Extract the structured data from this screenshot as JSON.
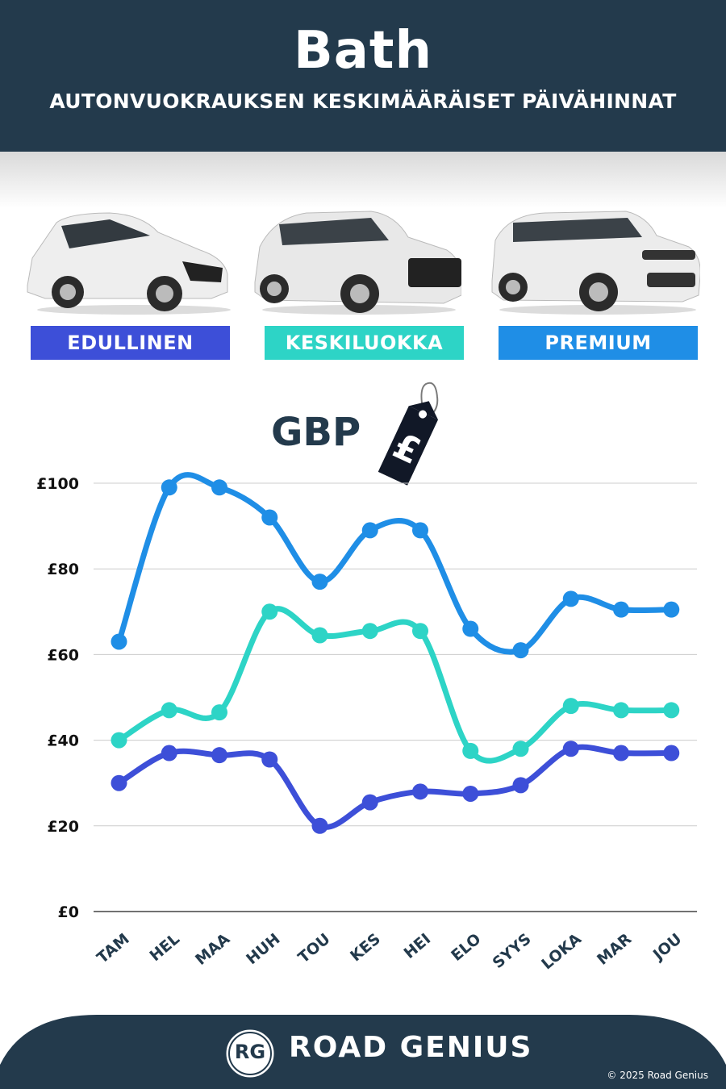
{
  "header": {
    "city": "Bath",
    "subtitle": "AUTONVUOKRAUKSEN KESKIMÄÄRÄISET PÄIVÄHINNAT"
  },
  "categories": [
    {
      "label": "EDULLINEN",
      "color": "#3d4fd8"
    },
    {
      "label": "KESKILUOKKA",
      "color": "#2dd4c6"
    },
    {
      "label": "PREMIUM",
      "color": "#1f8ee6"
    }
  ],
  "currency_label": "GBP",
  "price_tag_icon": "pound-price-tag-icon",
  "chart_data": {
    "type": "line",
    "x": [
      "TAM",
      "HEL",
      "MAA",
      "HUH",
      "TOU",
      "KES",
      "HEI",
      "ELO",
      "SYYS",
      "LOKA",
      "MAR",
      "JOU"
    ],
    "yticks": [
      "£0",
      "£20",
      "£40",
      "£60",
      "£80",
      "£100"
    ],
    "ylim": [
      0,
      100
    ],
    "grid": true,
    "series": [
      {
        "name": "PREMIUM",
        "color": "#1f8ee6",
        "values": [
          63,
          99,
          99,
          92,
          77,
          89,
          89,
          66,
          61,
          73,
          70.5,
          70.5
        ]
      },
      {
        "name": "KESKILUOKKA",
        "color": "#2dd4c6",
        "values": [
          40,
          47,
          46.5,
          70,
          64.5,
          65.5,
          65.5,
          37.5,
          38,
          48,
          47,
          47
        ]
      },
      {
        "name": "EDULLINEN",
        "color": "#3d4fd8",
        "values": [
          30,
          37,
          36.5,
          35.5,
          20,
          25.5,
          28,
          27.5,
          29.5,
          38,
          37,
          37
        ]
      }
    ]
  },
  "footer": {
    "logo_text": "RG",
    "brand": "ROAD GENIUS",
    "copyright": "© 2025 Road Genius"
  }
}
